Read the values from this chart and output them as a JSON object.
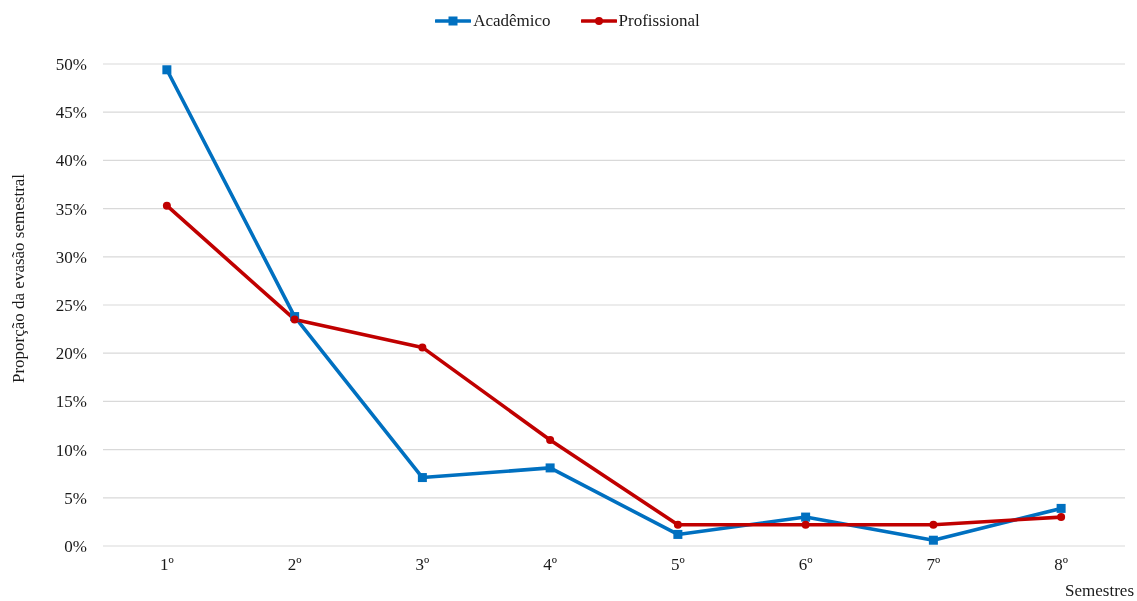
{
  "chart_data": {
    "type": "line",
    "xlabel": "Semestres",
    "ylabel": "Proporção da evasão semestral",
    "categories": [
      "1º",
      "2º",
      "3º",
      "4º",
      "5º",
      "6º",
      "7º",
      "8º"
    ],
    "series": [
      {
        "name": "Acadêmico",
        "color": "#0070c0",
        "marker": "square",
        "values": [
          49.4,
          23.8,
          7.1,
          8.1,
          1.2,
          3.0,
          0.6,
          3.9
        ]
      },
      {
        "name": "Profissional",
        "color": "#c00000",
        "marker": "circle",
        "values": [
          35.3,
          23.5,
          20.6,
          11.0,
          2.2,
          2.2,
          2.2,
          3.0
        ]
      }
    ],
    "ylim": [
      0,
      50
    ],
    "yticks": [
      {
        "value": 0,
        "label": "0%"
      },
      {
        "value": 5,
        "label": "5%"
      },
      {
        "value": 10,
        "label": "10%"
      },
      {
        "value": 15,
        "label": "15%"
      },
      {
        "value": 20,
        "label": "20%"
      },
      {
        "value": 25,
        "label": "25%"
      },
      {
        "value": 30,
        "label": "30%"
      },
      {
        "value": 35,
        "label": "35%"
      },
      {
        "value": 40,
        "label": "40%"
      },
      {
        "value": 45,
        "label": "45%"
      },
      {
        "value": 50,
        "label": "50%"
      }
    ],
    "grid": "y",
    "legend": "top",
    "line_style": "solid"
  }
}
